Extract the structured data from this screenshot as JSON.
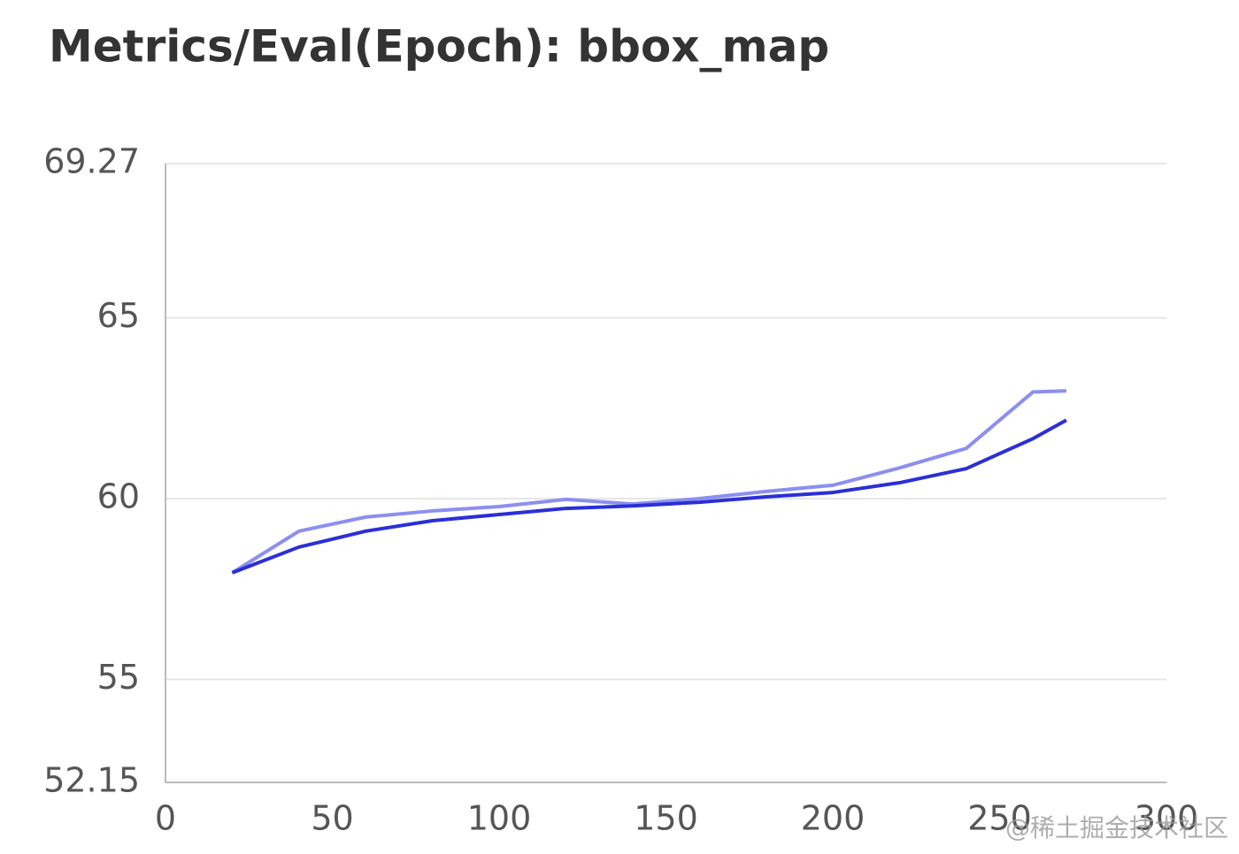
{
  "chart_data": {
    "type": "line",
    "title": "Metrics/Eval(Epoch): bbox_map",
    "x": [
      20,
      40,
      60,
      80,
      100,
      120,
      140,
      160,
      180,
      200,
      220,
      240,
      260,
      270
    ],
    "series": [
      {
        "color": "#8c8ff0",
        "values": [
          57.95,
          59.1,
          59.49,
          59.66,
          59.78,
          59.98,
          59.85,
          60.0,
          60.2,
          60.37,
          60.85,
          61.39,
          62.95,
          62.98
        ]
      },
      {
        "color": "#2a2fd8",
        "values": [
          57.95,
          58.66,
          59.1,
          59.39,
          59.56,
          59.73,
          59.8,
          59.9,
          60.05,
          60.17,
          60.44,
          60.83,
          61.66,
          62.17
        ]
      }
    ],
    "xlim": [
      0,
      300
    ],
    "xticks": [
      0,
      50,
      100,
      150,
      200,
      250,
      300
    ],
    "ylim": [
      52.15,
      69.27
    ],
    "yticks": [
      52.15,
      55,
      60,
      65,
      69.27
    ],
    "grid": true,
    "watermark": "@稀土掘金技术社区"
  }
}
